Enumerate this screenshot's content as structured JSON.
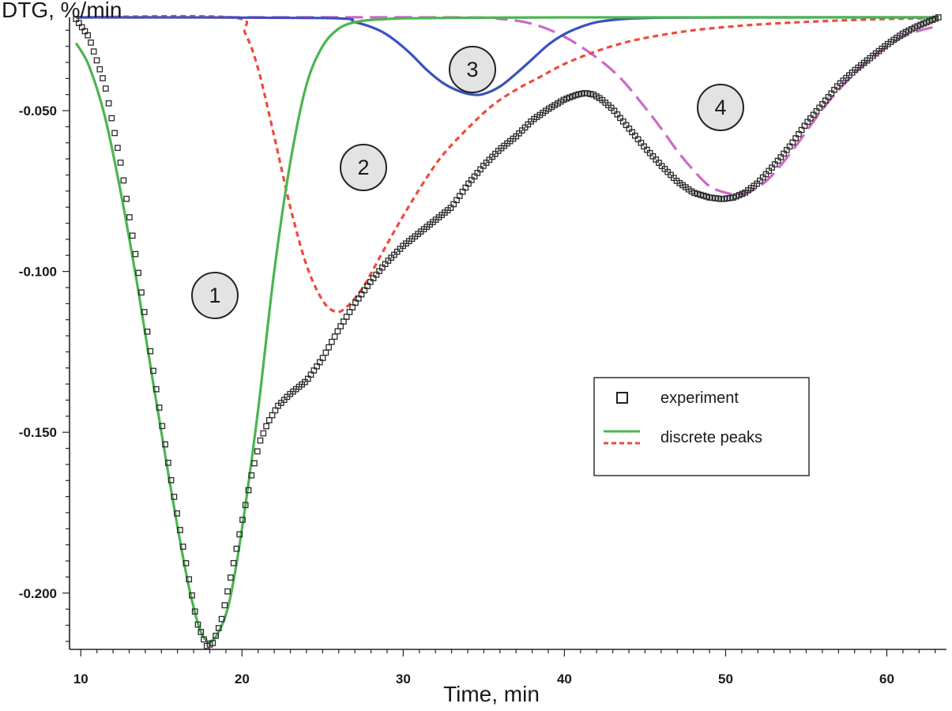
{
  "chart_data": {
    "type": "line",
    "ylabel": "DTG, %/min",
    "xlabel": "Time, min",
    "xlim": [
      9.3,
      63.7
    ],
    "ylim": [
      -0.2175,
      -0.021
    ],
    "x_ticks": [
      10,
      20,
      30,
      40,
      50,
      60
    ],
    "x_tick_labels": [
      "10",
      "20",
      "30",
      "40",
      "50",
      "60"
    ],
    "y_ticks": [
      -0.05,
      -0.1,
      -0.15,
      -0.2
    ],
    "y_tick_labels": [
      "-0.050",
      "-0.100",
      "-0.150",
      "-0.200"
    ],
    "grid": false,
    "legend": {
      "placement": "right-middle",
      "entries": [
        {
          "label": "experiment",
          "marker": "square"
        },
        {
          "label": "discrete peaks",
          "marker": "lines"
        }
      ]
    },
    "peak_labels": [
      "1",
      "2",
      "3",
      "4"
    ],
    "colors": {
      "experiment": "#2a2a2a",
      "peak1": "#4bb551",
      "peak2": "#ef4a3b",
      "peak3": "#3a52bd",
      "peak4": "#cc6ac6",
      "badge_fill": "#e3e3e3"
    },
    "series": [
      {
        "key": "experiment",
        "style": "markers",
        "x": [
          9.7,
          10.5,
          11.5,
          12.5,
          13.5,
          14.5,
          15.5,
          16.5,
          17.2,
          17.8,
          18.2,
          18.7,
          19.3,
          20.0,
          20.6,
          21.1,
          21.6,
          22.2,
          23.0,
          24.0,
          25.0,
          26.0,
          27.0,
          28.0,
          29.0,
          30.0,
          31.0,
          32.0,
          33.0,
          34.0,
          35.0,
          36.0,
          37.0,
          38.0,
          39.0,
          40.0,
          40.8,
          41.3,
          41.8,
          42.3,
          43.0,
          44.0,
          45.0,
          46.0,
          47.0,
          48.0,
          49.0,
          49.8,
          50.5,
          51.2,
          52.0,
          53.0,
          54.0,
          55.0,
          56.0,
          57.0,
          58.0,
          59.0,
          60.0,
          61.0,
          62.0,
          63.2
        ],
        "y": [
          -0.0215,
          -0.027,
          -0.042,
          -0.067,
          -0.098,
          -0.131,
          -0.162,
          -0.19,
          -0.209,
          -0.2165,
          -0.2155,
          -0.209,
          -0.195,
          -0.178,
          -0.163,
          -0.153,
          -0.147,
          -0.142,
          -0.138,
          -0.134,
          -0.127,
          -0.118,
          -0.11,
          -0.103,
          -0.097,
          -0.092,
          -0.088,
          -0.084,
          -0.08,
          -0.073,
          -0.067,
          -0.062,
          -0.058,
          -0.053,
          -0.0495,
          -0.0465,
          -0.045,
          -0.0445,
          -0.045,
          -0.0465,
          -0.0495,
          -0.0555,
          -0.0615,
          -0.067,
          -0.072,
          -0.0755,
          -0.077,
          -0.0775,
          -0.077,
          -0.0755,
          -0.0725,
          -0.067,
          -0.061,
          -0.054,
          -0.048,
          -0.042,
          -0.0375,
          -0.0335,
          -0.0295,
          -0.026,
          -0.0235,
          -0.021
        ]
      },
      {
        "key": "peak1",
        "style": "solid",
        "x": [
          9.7,
          10.5,
          11.5,
          12.5,
          13.5,
          14.5,
          15.5,
          16.5,
          17.3,
          17.9,
          18.5,
          19.2,
          20.0,
          21.0,
          22.0,
          23.0,
          24.0,
          25.0,
          26.0,
          27.0,
          28.0,
          29.0,
          30.0,
          35.0,
          40.0,
          50.0,
          63.2
        ],
        "y": [
          -0.029,
          -0.036,
          -0.052,
          -0.076,
          -0.104,
          -0.135,
          -0.165,
          -0.193,
          -0.21,
          -0.215,
          -0.2125,
          -0.203,
          -0.18,
          -0.143,
          -0.1,
          -0.066,
          -0.042,
          -0.03,
          -0.0245,
          -0.0225,
          -0.0218,
          -0.0215,
          -0.0213,
          -0.0211,
          -0.021,
          -0.021,
          -0.021
        ]
      },
      {
        "key": "peak2",
        "style": "dashed",
        "x": [
          9.7,
          19.3,
          20.2,
          21.0,
          22.0,
          23.0,
          24.0,
          25.0,
          25.8,
          26.5,
          27.5,
          28.5,
          29.5,
          30.5,
          31.5,
          32.5,
          34.0,
          35.5,
          37.0,
          38.5,
          40.0,
          42.0,
          44.0,
          46.0,
          48.0,
          50.0,
          52.0,
          55.0,
          58.0,
          60.0,
          63.2
        ],
        "y": [
          -0.021,
          -0.021,
          -0.026,
          -0.037,
          -0.058,
          -0.08,
          -0.098,
          -0.109,
          -0.1125,
          -0.111,
          -0.105,
          -0.096,
          -0.087,
          -0.0785,
          -0.0705,
          -0.0635,
          -0.0555,
          -0.0485,
          -0.0435,
          -0.0395,
          -0.0355,
          -0.0315,
          -0.0285,
          -0.0265,
          -0.025,
          -0.024,
          -0.0232,
          -0.0224,
          -0.0218,
          -0.0215,
          -0.0212
        ]
      },
      {
        "key": "peak3",
        "style": "solid",
        "x": [
          9.7,
          25.0,
          27.0,
          28.5,
          29.5,
          30.5,
          31.5,
          32.5,
          33.5,
          34.3,
          35.0,
          36.0,
          37.0,
          38.0,
          39.0,
          40.0,
          41.0,
          42.0,
          43.0,
          44.0,
          46.0,
          50.0,
          63.2
        ],
        "y": [
          -0.021,
          -0.0212,
          -0.0225,
          -0.025,
          -0.0282,
          -0.0325,
          -0.0375,
          -0.0415,
          -0.044,
          -0.045,
          -0.0448,
          -0.0425,
          -0.0385,
          -0.034,
          -0.0295,
          -0.0262,
          -0.024,
          -0.0225,
          -0.0218,
          -0.0214,
          -0.0211,
          -0.021,
          -0.021
        ]
      },
      {
        "key": "peak4",
        "style": "longdash",
        "x": [
          9.7,
          33.0,
          36.0,
          38.0,
          40.0,
          42.0,
          43.5,
          45.0,
          46.0,
          47.0,
          48.0,
          49.0,
          50.0,
          50.7,
          51.5,
          52.5,
          53.5,
          54.5,
          55.5,
          56.5,
          57.5,
          58.5,
          59.5,
          60.5,
          61.5,
          62.5,
          63.2
        ],
        "y": [
          -0.021,
          -0.021,
          -0.0215,
          -0.023,
          -0.027,
          -0.0335,
          -0.04,
          -0.049,
          -0.0555,
          -0.0625,
          -0.0685,
          -0.0735,
          -0.0755,
          -0.076,
          -0.0752,
          -0.072,
          -0.0665,
          -0.06,
          -0.053,
          -0.0465,
          -0.041,
          -0.036,
          -0.0318,
          -0.0285,
          -0.026,
          -0.0245,
          -0.0238
        ]
      }
    ]
  }
}
